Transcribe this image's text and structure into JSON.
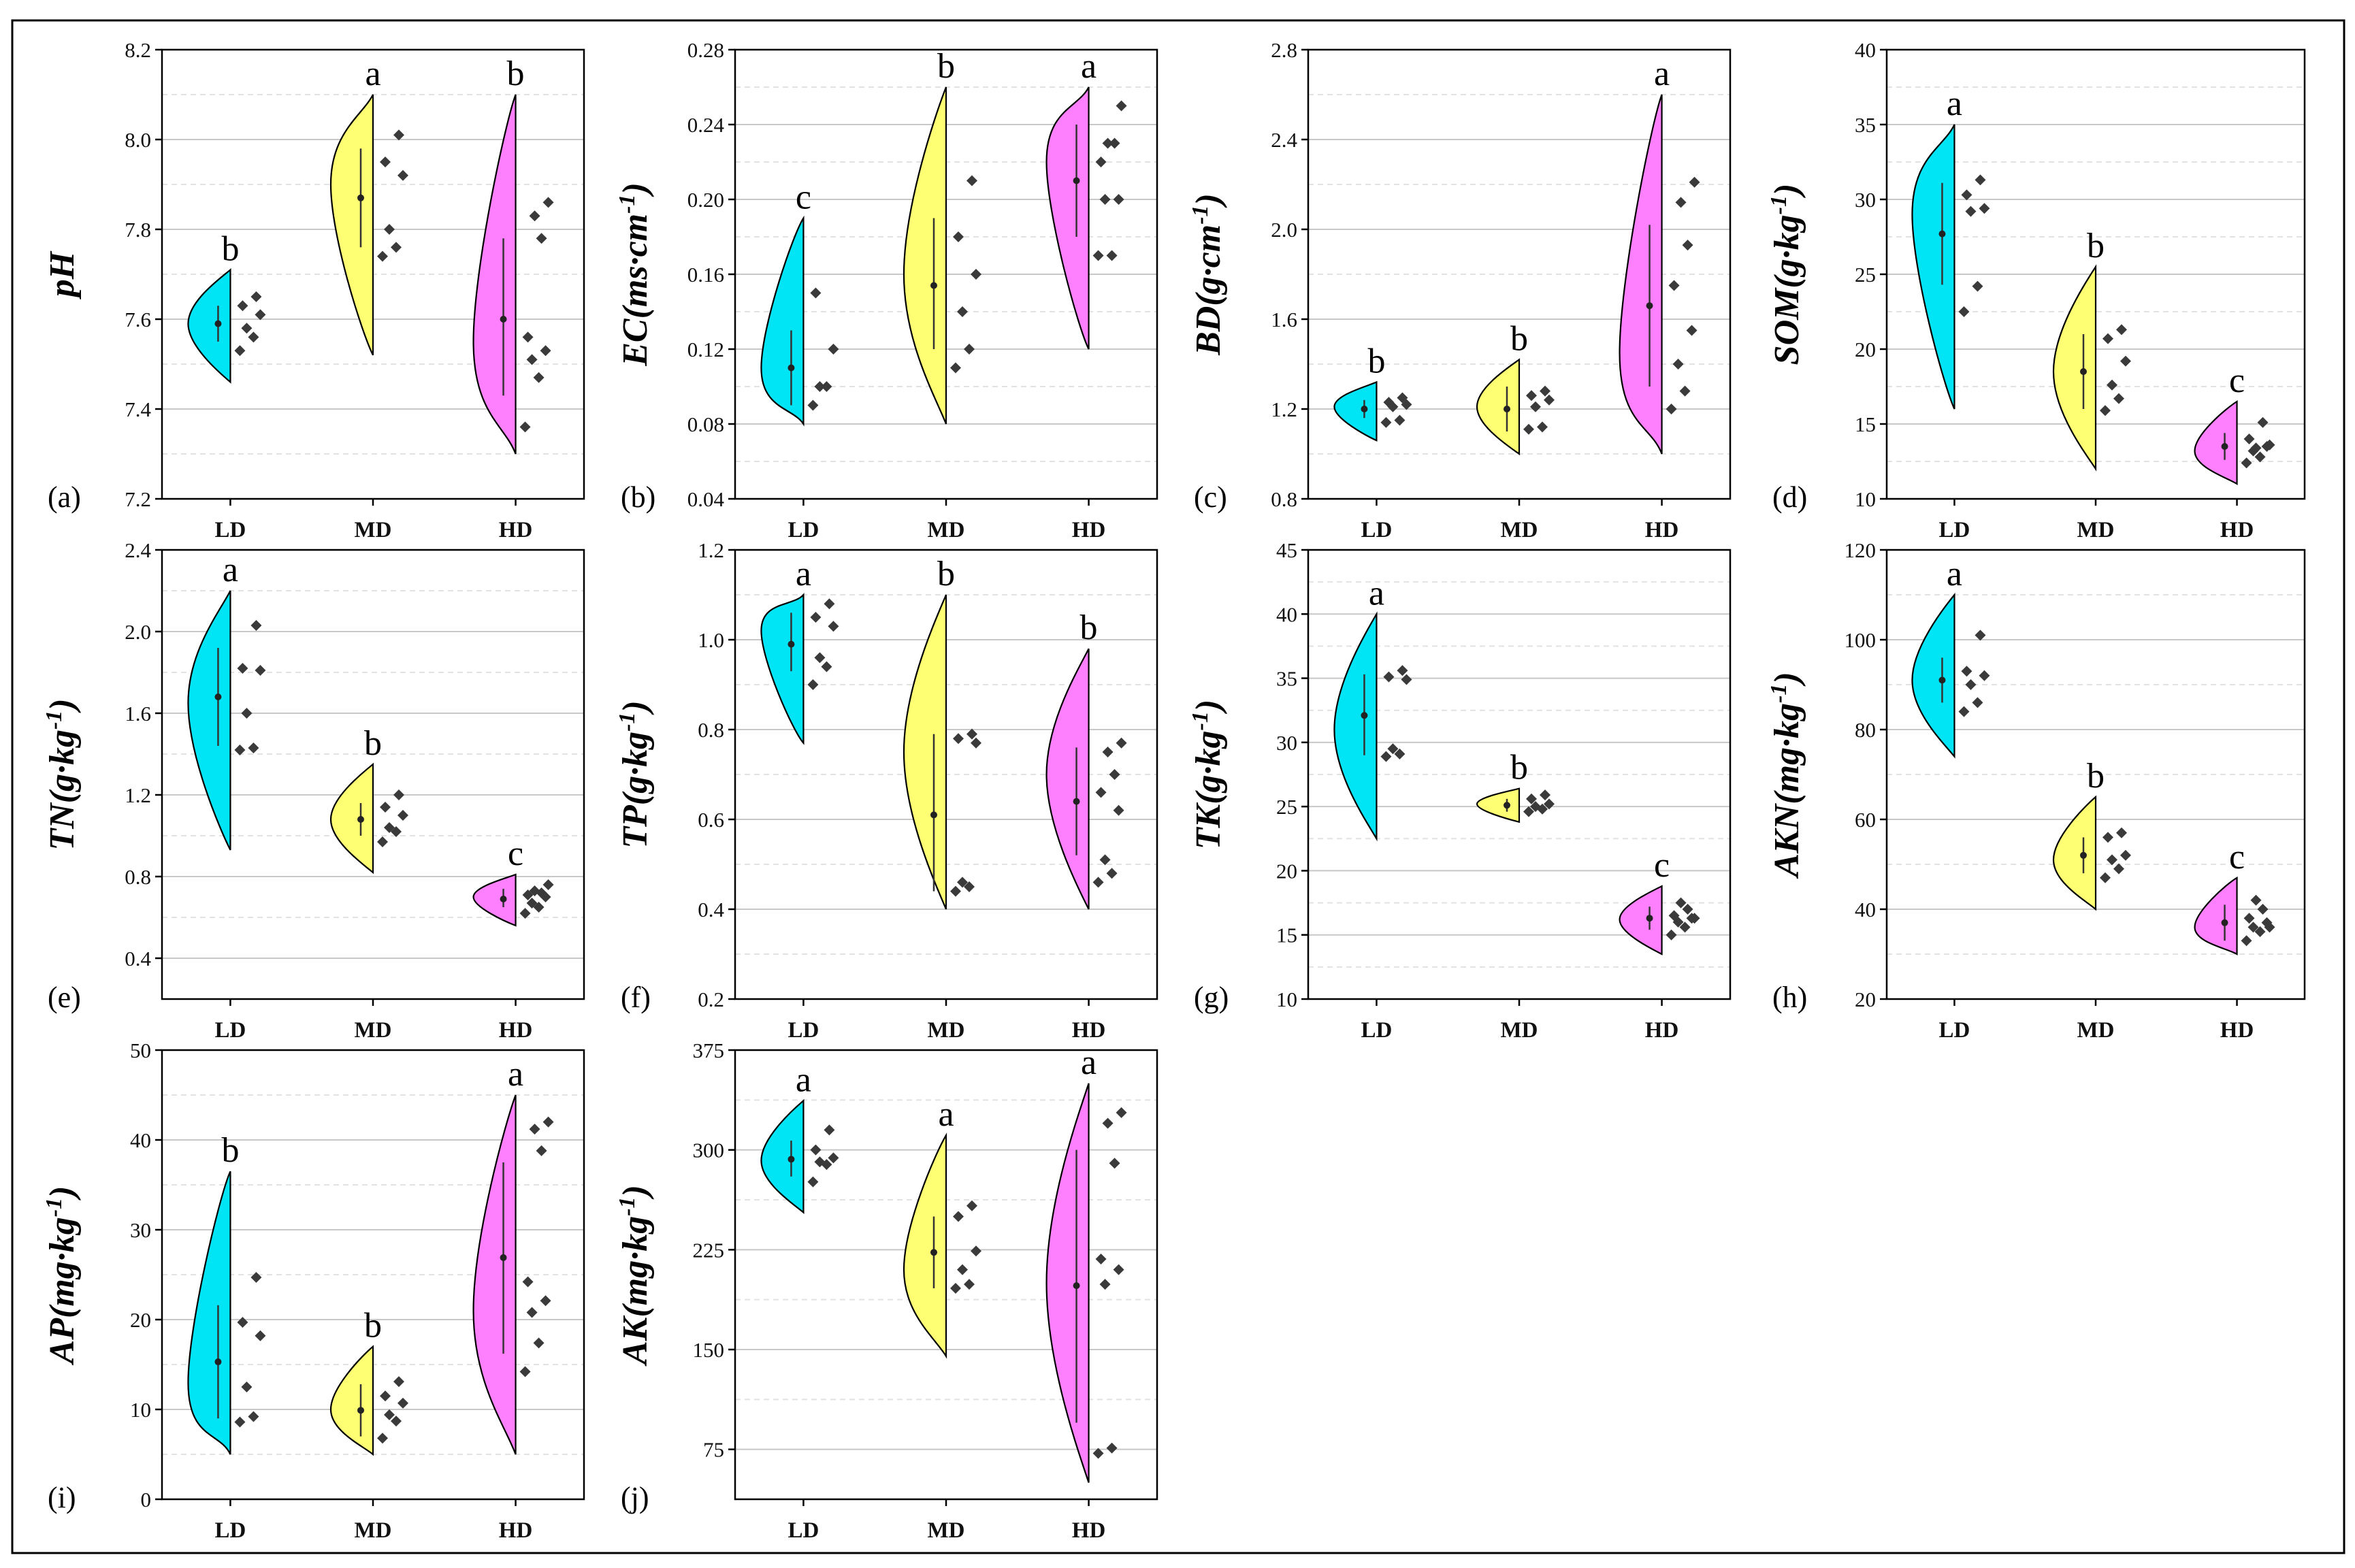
{
  "figure": {
    "colors": {
      "LD": "#00e5f5",
      "MD": "#ffff73",
      "HD": "#ff80ff",
      "points": "#3a3a3a",
      "gridline": "#c8c8c8",
      "minor_gridline": "#e2e2e2",
      "frame": "#000000"
    }
  },
  "chart_data": [
    {
      "type": "violin",
      "panel_label": "(a)",
      "ylabel": "pH",
      "ylabel_sup": "",
      "yticks": [
        "7.2",
        "7.4",
        "7.6",
        "7.8",
        "8.0",
        "8.2"
      ],
      "ylim": [
        7.2,
        8.2
      ],
      "categories": [
        "LD",
        "MD",
        "HD"
      ],
      "groups": [
        {
          "name": "LD",
          "min": 7.46,
          "max": 7.71,
          "peak": 7.59,
          "mean": 7.59,
          "ci": [
            7.55,
            7.63
          ],
          "sig": "b",
          "points": [
            7.53,
            7.56,
            7.58,
            7.61,
            7.63,
            7.65
          ]
        },
        {
          "name": "MD",
          "min": 7.52,
          "max": 8.1,
          "peak": 7.9,
          "mean": 7.87,
          "ci": [
            7.76,
            7.98
          ],
          "sig": "a",
          "points": [
            7.74,
            7.76,
            7.8,
            7.92,
            7.95,
            8.01
          ]
        },
        {
          "name": "HD",
          "min": 7.3,
          "max": 8.1,
          "peak": 7.55,
          "mean": 7.6,
          "ci": [
            7.43,
            7.78
          ],
          "sig": "b",
          "points": [
            7.36,
            7.47,
            7.51,
            7.53,
            7.56,
            7.78,
            7.83,
            7.86
          ]
        }
      ]
    },
    {
      "type": "violin",
      "panel_label": "(b)",
      "ylabel": "EC(ms·cm",
      "ylabel_sup": "-1",
      "ylabel_end": ")",
      "yticks": [
        "0.04",
        "0.08",
        "0.12",
        "0.16",
        "0.20",
        "0.24",
        "0.28"
      ],
      "ylim": [
        0.04,
        0.28
      ],
      "categories": [
        "LD",
        "MD",
        "HD"
      ],
      "groups": [
        {
          "name": "LD",
          "min": 0.08,
          "max": 0.19,
          "peak": 0.11,
          "mean": 0.11,
          "ci": [
            0.09,
            0.13
          ],
          "sig": "c",
          "points": [
            0.09,
            0.1,
            0.1,
            0.12,
            0.15
          ]
        },
        {
          "name": "MD",
          "min": 0.08,
          "max": 0.26,
          "peak": 0.16,
          "mean": 0.154,
          "ci": [
            0.12,
            0.19
          ],
          "sig": "b",
          "points": [
            0.11,
            0.12,
            0.14,
            0.16,
            0.18,
            0.21
          ]
        },
        {
          "name": "HD",
          "min": 0.12,
          "max": 0.26,
          "peak": 0.22,
          "mean": 0.21,
          "ci": [
            0.18,
            0.24
          ],
          "sig": "a",
          "points": [
            0.17,
            0.17,
            0.2,
            0.2,
            0.22,
            0.23,
            0.23,
            0.25
          ]
        }
      ]
    },
    {
      "type": "violin",
      "panel_label": "(c)",
      "ylabel": "BD(g·cm",
      "ylabel_sup": "-1",
      "ylabel_end": ")",
      "yticks": [
        "0.8",
        "1.2",
        "1.6",
        "2.0",
        "2.4",
        "2.8"
      ],
      "ylim": [
        0.8,
        2.8
      ],
      "categories": [
        "LD",
        "MD",
        "HD"
      ],
      "groups": [
        {
          "name": "LD",
          "min": 1.06,
          "max": 1.32,
          "peak": 1.21,
          "mean": 1.2,
          "ci": [
            1.16,
            1.24
          ],
          "sig": "b",
          "points": [
            1.14,
            1.15,
            1.21,
            1.22,
            1.23,
            1.25
          ]
        },
        {
          "name": "MD",
          "min": 1.0,
          "max": 1.42,
          "peak": 1.21,
          "mean": 1.2,
          "ci": [
            1.1,
            1.3
          ],
          "sig": "b",
          "points": [
            1.11,
            1.12,
            1.21,
            1.24,
            1.26,
            1.28
          ]
        },
        {
          "name": "HD",
          "min": 1.0,
          "max": 2.6,
          "peak": 1.45,
          "mean": 1.66,
          "ci": [
            1.3,
            2.02
          ],
          "sig": "a",
          "points": [
            1.2,
            1.28,
            1.4,
            1.55,
            1.75,
            1.93,
            2.12,
            2.21
          ]
        }
      ]
    },
    {
      "type": "violin",
      "panel_label": "(d)",
      "ylabel": "SOM(g·kg",
      "ylabel_sup": "-1",
      "ylabel_end": ")",
      "yticks": [
        "10",
        "15",
        "20",
        "25",
        "30",
        "35",
        "40"
      ],
      "ylim": [
        10,
        40
      ],
      "categories": [
        "LD",
        "MD",
        "HD"
      ],
      "groups": [
        {
          "name": "LD",
          "min": 16.0,
          "max": 35.0,
          "peak": 29.0,
          "mean": 27.7,
          "ci": [
            24.3,
            31.1
          ],
          "sig": "a",
          "points": [
            22.5,
            24.2,
            29.2,
            29.4,
            30.3,
            31.3
          ]
        },
        {
          "name": "MD",
          "min": 12.0,
          "max": 25.5,
          "peak": 18.5,
          "mean": 18.5,
          "ci": [
            16.0,
            21.0
          ],
          "sig": "b",
          "points": [
            15.9,
            16.7,
            17.6,
            19.2,
            20.7,
            21.3
          ]
        },
        {
          "name": "HD",
          "min": 11.0,
          "max": 16.5,
          "peak": 13.2,
          "mean": 13.5,
          "ci": [
            12.6,
            14.4
          ],
          "sig": "c",
          "points": [
            12.4,
            12.8,
            13.2,
            13.5,
            14.0,
            15.1,
            13.4,
            13.6
          ]
        }
      ]
    },
    {
      "type": "violin",
      "panel_label": "(e)",
      "ylabel": "TN(g·kg",
      "ylabel_sup": "-1",
      "ylabel_end": ")",
      "yticks": [
        "0.4",
        "0.8",
        "1.2",
        "1.6",
        "2.0",
        "2.4"
      ],
      "ylim": [
        0.2,
        2.4
      ],
      "categories": [
        "LD",
        "MD",
        "HD"
      ],
      "groups": [
        {
          "name": "LD",
          "min": 0.93,
          "max": 2.2,
          "peak": 1.65,
          "mean": 1.68,
          "ci": [
            1.44,
            1.92
          ],
          "sig": "a",
          "points": [
            1.42,
            1.43,
            1.6,
            1.81,
            1.82,
            2.03
          ]
        },
        {
          "name": "MD",
          "min": 0.82,
          "max": 1.35,
          "peak": 1.08,
          "mean": 1.08,
          "ci": [
            1.0,
            1.16
          ],
          "sig": "b",
          "points": [
            0.97,
            1.02,
            1.04,
            1.1,
            1.14,
            1.2
          ]
        },
        {
          "name": "HD",
          "min": 0.56,
          "max": 0.81,
          "peak": 0.7,
          "mean": 0.69,
          "ci": [
            0.65,
            0.74
          ],
          "sig": "c",
          "points": [
            0.62,
            0.65,
            0.67,
            0.7,
            0.71,
            0.72,
            0.73,
            0.76
          ]
        }
      ]
    },
    {
      "type": "violin",
      "panel_label": "(f)",
      "ylabel": "TP(g·kg",
      "ylabel_sup": "-1",
      "ylabel_end": ")",
      "yticks": [
        "0.2",
        "0.4",
        "0.6",
        "0.8",
        "1.0",
        "1.2"
      ],
      "ylim": [
        0.2,
        1.2
      ],
      "categories": [
        "LD",
        "MD",
        "HD"
      ],
      "groups": [
        {
          "name": "LD",
          "min": 0.77,
          "max": 1.1,
          "peak": 1.02,
          "mean": 0.99,
          "ci": [
            0.93,
            1.06
          ],
          "sig": "a",
          "points": [
            0.9,
            0.94,
            0.96,
            1.03,
            1.05,
            1.08
          ]
        },
        {
          "name": "MD",
          "min": 0.4,
          "max": 1.1,
          "peak": 0.75,
          "mean": 0.61,
          "ci": [
            0.44,
            0.79
          ],
          "sig": "b",
          "points": [
            0.44,
            0.45,
            0.46,
            0.77,
            0.78,
            0.79
          ]
        },
        {
          "name": "HD",
          "min": 0.4,
          "max": 0.98,
          "peak": 0.7,
          "mean": 0.64,
          "ci": [
            0.52,
            0.76
          ],
          "sig": "b",
          "points": [
            0.46,
            0.48,
            0.51,
            0.62,
            0.66,
            0.7,
            0.75,
            0.77
          ]
        }
      ]
    },
    {
      "type": "violin",
      "panel_label": "(g)",
      "ylabel": "TK(g·kg",
      "ylabel_sup": "-1",
      "ylabel_end": ")",
      "yticks": [
        "10",
        "15",
        "20",
        "25",
        "30",
        "35",
        "40",
        "45"
      ],
      "ylim": [
        10,
        45
      ],
      "categories": [
        "LD",
        "MD",
        "HD"
      ],
      "groups": [
        {
          "name": "LD",
          "min": 22.5,
          "max": 40.0,
          "peak": 31.0,
          "mean": 32.1,
          "ci": [
            29.0,
            35.3
          ],
          "sig": "a",
          "points": [
            28.9,
            29.1,
            29.5,
            34.9,
            35.1,
            35.6
          ]
        },
        {
          "name": "MD",
          "min": 23.8,
          "max": 26.4,
          "peak": 25.2,
          "mean": 25.1,
          "ci": [
            24.6,
            25.6
          ],
          "sig": "b",
          "points": [
            24.6,
            24.8,
            25.0,
            25.2,
            25.6,
            25.9
          ]
        },
        {
          "name": "HD",
          "min": 13.5,
          "max": 18.8,
          "peak": 16.2,
          "mean": 16.3,
          "ci": [
            15.4,
            17.2
          ],
          "sig": "c",
          "points": [
            15.0,
            15.6,
            16.0,
            16.3,
            16.5,
            17.0,
            17.5,
            16.3
          ]
        }
      ]
    },
    {
      "type": "violin",
      "panel_label": "(h)",
      "ylabel": "AKN(mg·kg",
      "ylabel_sup": "-1",
      "ylabel_end": ")",
      "yticks": [
        "20",
        "40",
        "60",
        "80",
        "100",
        "120"
      ],
      "ylim": [
        20,
        120
      ],
      "categories": [
        "LD",
        "MD",
        "HD"
      ],
      "groups": [
        {
          "name": "LD",
          "min": 74,
          "max": 110,
          "peak": 91,
          "mean": 91,
          "ci": [
            86,
            96
          ],
          "sig": "a",
          "points": [
            84,
            86,
            90,
            92,
            93,
            101
          ]
        },
        {
          "name": "MD",
          "min": 40,
          "max": 65,
          "peak": 51,
          "mean": 52,
          "ci": [
            48,
            56
          ],
          "sig": "b",
          "points": [
            47,
            49,
            51,
            52,
            56,
            57
          ]
        },
        {
          "name": "HD",
          "min": 30,
          "max": 47,
          "peak": 36,
          "mean": 37,
          "ci": [
            33,
            41
          ],
          "sig": "c",
          "points": [
            33,
            35,
            36,
            37,
            38,
            40,
            42,
            36
          ]
        }
      ]
    },
    {
      "type": "violin",
      "panel_label": "(i)",
      "ylabel": "AP(mg·kg",
      "ylabel_sup": "-1",
      "ylabel_end": ")",
      "yticks": [
        "0",
        "10",
        "20",
        "30",
        "40",
        "50"
      ],
      "ylim": [
        0,
        50
      ],
      "categories": [
        "LD",
        "MD",
        "HD"
      ],
      "groups": [
        {
          "name": "LD",
          "min": 5.0,
          "max": 36.5,
          "peak": 13.0,
          "mean": 15.3,
          "ci": [
            9.0,
            21.6
          ],
          "sig": "b",
          "points": [
            8.6,
            9.2,
            12.5,
            18.2,
            19.7,
            24.7
          ]
        },
        {
          "name": "MD",
          "min": 5.0,
          "max": 17.0,
          "peak": 10.0,
          "mean": 9.9,
          "ci": [
            7.0,
            12.8
          ],
          "sig": "b",
          "points": [
            6.8,
            8.7,
            9.4,
            10.7,
            11.5,
            13.1
          ]
        },
        {
          "name": "HD",
          "min": 5.0,
          "max": 45.0,
          "peak": 21.0,
          "mean": 26.9,
          "ci": [
            16.2,
            37.5
          ],
          "sig": "a",
          "points": [
            14.2,
            17.4,
            20.8,
            22.1,
            24.2,
            38.8,
            41.2,
            42.0
          ]
        }
      ]
    },
    {
      "type": "violin",
      "panel_label": "(j)",
      "ylabel": "AK(mg·kg",
      "ylabel_sup": "-1",
      "ylabel_end": ")",
      "yticks": [
        "75",
        "150",
        "225",
        "300",
        "375"
      ],
      "ylim": [
        37.5,
        375
      ],
      "categories": [
        "LD",
        "MD",
        "HD"
      ],
      "groups": [
        {
          "name": "LD",
          "min": 253,
          "max": 337,
          "peak": 292,
          "mean": 293,
          "ci": [
            280,
            307
          ],
          "sig": "a",
          "points": [
            276,
            289,
            291,
            294,
            300,
            315
          ]
        },
        {
          "name": "MD",
          "min": 145,
          "max": 311,
          "peak": 210,
          "mean": 223,
          "ci": [
            196,
            250
          ],
          "sig": "a",
          "points": [
            196,
            199,
            210,
            224,
            250,
            258
          ]
        },
        {
          "name": "HD",
          "min": 50,
          "max": 350,
          "peak": 200,
          "mean": 198,
          "ci": [
            95,
            300
          ],
          "sig": "a",
          "points": [
            72,
            76,
            199,
            210,
            218,
            290,
            320,
            328
          ]
        }
      ]
    }
  ]
}
